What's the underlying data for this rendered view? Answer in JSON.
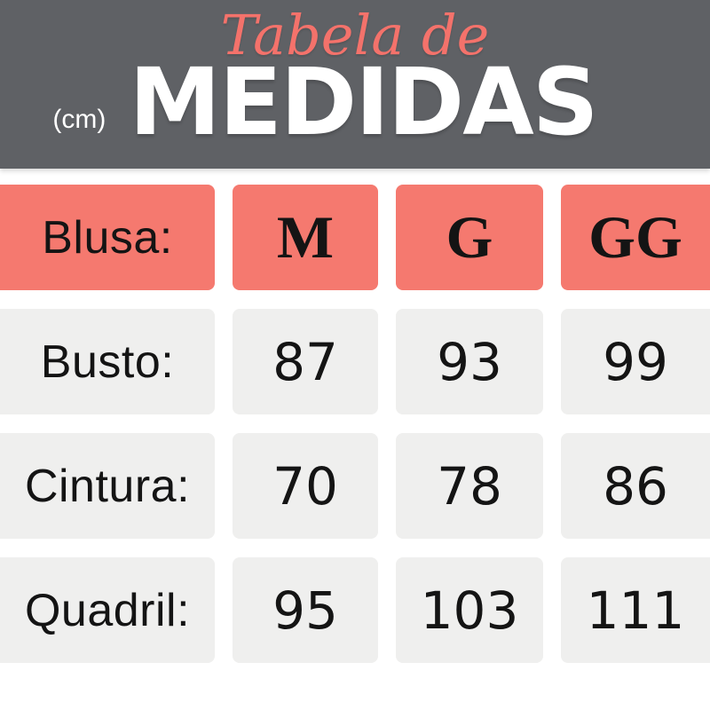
{
  "header": {
    "script_title": "Tabela de",
    "main_title": "MEDIDAS",
    "unit": "(cm)"
  },
  "chart_data": {
    "type": "table",
    "title": "Tabela de MEDIDAS",
    "unit": "cm",
    "columns": [
      "Blusa:",
      "M",
      "G",
      "GG"
    ],
    "rows": [
      [
        "Busto:",
        87,
        93,
        99
      ],
      [
        "Cintura:",
        70,
        78,
        86
      ],
      [
        "Quadril:",
        95,
        103,
        111
      ]
    ]
  },
  "colors": {
    "header_bg": "#5f6165",
    "title_coral": "#f4726b",
    "accent_coral": "#f5796f",
    "cell_gray": "#efefee",
    "text_dark": "#141414",
    "white": "#ffffff"
  }
}
